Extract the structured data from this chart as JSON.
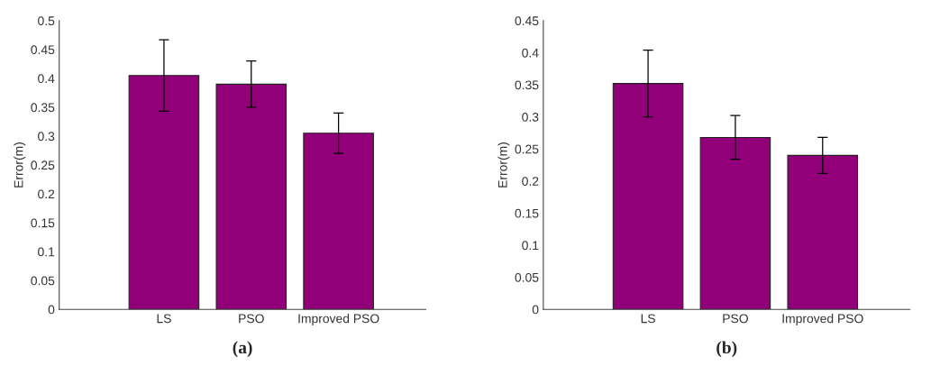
{
  "chart_data": [
    {
      "type": "bar",
      "ylabel": "Error(m)",
      "categories": [
        "LS",
        "PSO",
        "Improved PSO"
      ],
      "values": [
        0.405,
        0.39,
        0.305
      ],
      "errors": [
        0.062,
        0.04,
        0.035
      ],
      "color": "#910079",
      "ylim": [
        0,
        0.5
      ],
      "yticks": [
        0,
        0.05,
        0.1,
        0.15,
        0.2,
        0.25,
        0.3,
        0.35,
        0.4,
        0.45,
        0.5
      ],
      "grid": false,
      "annotations": [
        "(a)"
      ]
    },
    {
      "type": "bar",
      "ylabel": "Error(m)",
      "categories": [
        "LS",
        "PSO",
        "Improved PSO"
      ],
      "values": [
        0.352,
        0.268,
        0.24
      ],
      "errors": [
        0.052,
        0.034,
        0.028
      ],
      "color": "#910079",
      "ylim": [
        0,
        0.45
      ],
      "yticks": [
        0,
        0.05,
        0.1,
        0.15,
        0.2,
        0.25,
        0.3,
        0.35,
        0.4,
        0.45
      ],
      "grid": false,
      "annotations": [
        "(b)"
      ]
    }
  ]
}
